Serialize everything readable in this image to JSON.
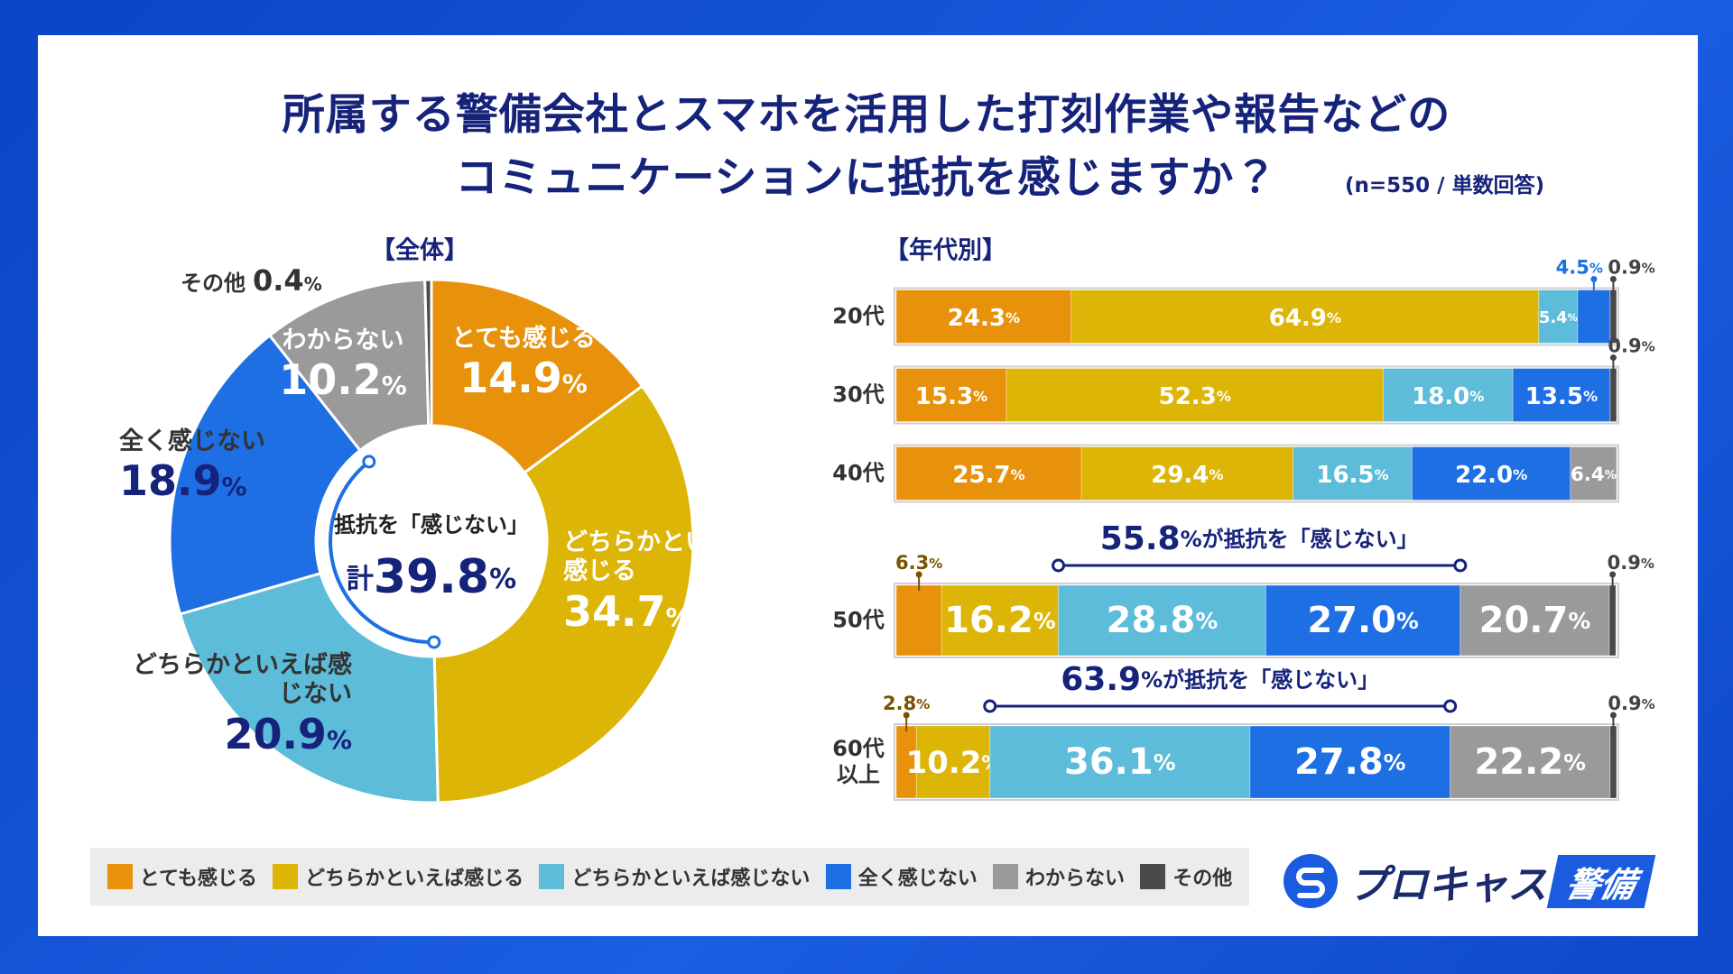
{
  "header": {
    "title_lines": [
      "所属する警備会社とスマホを活用した打刻作業や報告などの",
      "コミュニケーションに抵抗を感じますか？"
    ],
    "note": "(n=550 / 単数回答)"
  },
  "chart_data": [
    {
      "type": "pie",
      "title": "【全体】",
      "categories": [
        "とても感じる",
        "どちらかといえば感じる",
        "どちらかといえば感じない",
        "全く感じない",
        "わからない",
        "その他"
      ],
      "values": [
        14.9,
        34.7,
        20.9,
        18.9,
        10.2,
        0.4
      ],
      "value_labels": [
        "14.9%",
        "34.7%",
        "20.9%",
        "18.9%",
        "10.2%",
        "0.4%"
      ],
      "colors": [
        "#e8920c",
        "#dcb506",
        "#5cbcd9",
        "#1d6fe3",
        "#9a9a9a",
        "#4a4a4a"
      ],
      "center_label": "抵抗を「感じない」",
      "center_total": "計39.8%"
    },
    {
      "type": "bar",
      "orientation": "horizontal",
      "stacked": true,
      "title": "【年代別】",
      "categories": [
        "20代",
        "30代",
        "40代",
        "50代",
        "60代\n以上"
      ],
      "xlim": [
        0,
        100
      ],
      "series": [
        {
          "name": "とても感じる",
          "color": "#e8920c",
          "values": [
            24.3,
            15.3,
            25.7,
            6.3,
            2.8
          ],
          "value_labels": [
            "24.3%",
            "15.3%",
            "25.7%",
            "6.3%",
            "2.8%"
          ]
        },
        {
          "name": "どちらかといえば感じる",
          "color": "#dcb506",
          "values": [
            64.9,
            52.3,
            29.4,
            16.2,
            10.2
          ],
          "value_labels": [
            "64.9%",
            "52.3%",
            "29.4%",
            "16.2%",
            "10.2%"
          ]
        },
        {
          "name": "どちらかといえば感じない",
          "color": "#5cbcd9",
          "values": [
            5.4,
            18.0,
            16.5,
            28.8,
            36.1
          ],
          "value_labels": [
            "5.4%",
            "18.0%",
            "16.5%",
            "28.8%",
            "36.1%"
          ]
        },
        {
          "name": "全く感じない",
          "color": "#1d6fe3",
          "values": [
            4.5,
            13.5,
            22.0,
            27.0,
            27.8
          ],
          "value_labels": [
            "4.5%",
            "13.5%",
            "22.0%",
            "27.0%",
            "27.8%"
          ]
        },
        {
          "name": "わからない",
          "color": "#9a9a9a",
          "values": [
            0,
            0,
            6.4,
            20.7,
            22.2
          ],
          "value_labels": [
            null,
            null,
            "6.4%",
            "20.7%",
            "22.2%"
          ]
        },
        {
          "name": "その他",
          "color": "#4a4a4a",
          "values": [
            0.9,
            0.9,
            0,
            0.9,
            0.9
          ],
          "value_labels": [
            "0.9%",
            "0.9%",
            null,
            "0.9%",
            "0.9%"
          ]
        }
      ],
      "annotations": [
        "55.8%が抵抗を「感じない」",
        "63.9%が抵抗を「感じない」"
      ]
    }
  ],
  "brand": {
    "name": "プロキャス",
    "tag": "警備"
  }
}
